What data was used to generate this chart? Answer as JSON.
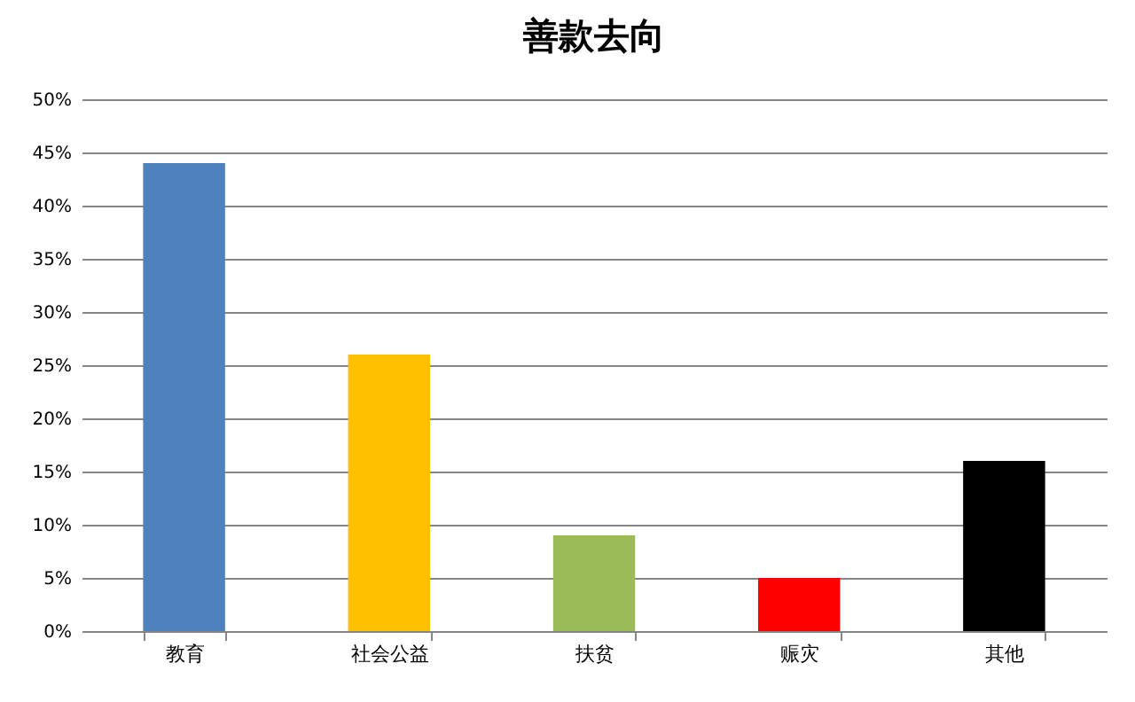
{
  "chart_data": {
    "type": "bar",
    "title": "善款去向",
    "categories": [
      "教育",
      "社会公益",
      "扶贫",
      "赈灾",
      "其他"
    ],
    "values": [
      44,
      26,
      9,
      5,
      16
    ],
    "colors": [
      "#4f81bd",
      "#ffc000",
      "#9bbb59",
      "#ff0000",
      "#000000"
    ],
    "ylim": [
      0,
      50
    ],
    "yticks": [
      {
        "value": 0,
        "label": "0%"
      },
      {
        "value": 5,
        "label": "5%"
      },
      {
        "value": 10,
        "label": "10%"
      },
      {
        "value": 15,
        "label": "15%"
      },
      {
        "value": 20,
        "label": "20%"
      },
      {
        "value": 25,
        "label": "25%"
      },
      {
        "value": 30,
        "label": "30%"
      },
      {
        "value": 35,
        "label": "35%"
      },
      {
        "value": 40,
        "label": "40%"
      },
      {
        "value": 45,
        "label": "45%"
      },
      {
        "value": 50,
        "label": "50%"
      }
    ],
    "grid": "y"
  }
}
